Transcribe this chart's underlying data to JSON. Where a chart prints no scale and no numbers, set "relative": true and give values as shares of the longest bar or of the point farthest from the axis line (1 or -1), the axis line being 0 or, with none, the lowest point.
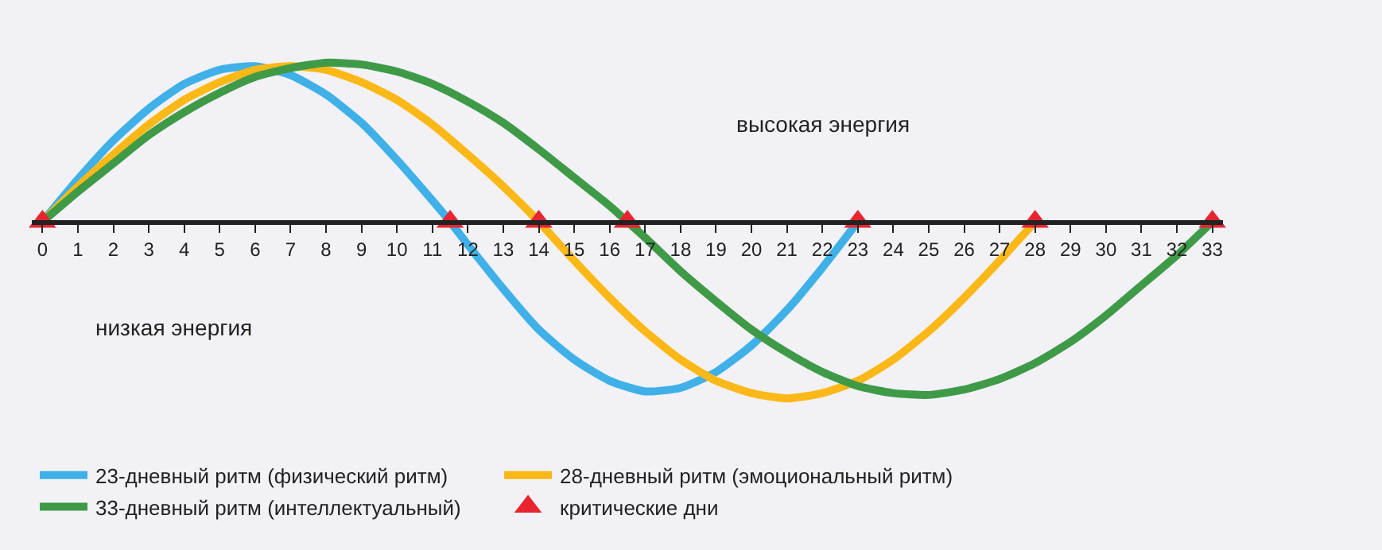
{
  "chart_data": {
    "type": "line",
    "relative": true,
    "grid": false,
    "legend": "bottom",
    "marker": "none",
    "line_style": "solid",
    "xlim": [
      -0.3,
      33.3
    ],
    "xticks": [
      0,
      1,
      2,
      3,
      4,
      5,
      6,
      7,
      8,
      9,
      10,
      11,
      12,
      13,
      14,
      15,
      16,
      17,
      18,
      19,
      20,
      21,
      22,
      23,
      24,
      25,
      26,
      27,
      28,
      29,
      30,
      31,
      32,
      33
    ],
    "annotations": [
      "высокая энергия",
      "низкая энергия"
    ],
    "series": [
      {
        "name": "23-дневный ритм (физический ритм)",
        "color": "#3fb0e8",
        "x": [
          0,
          1,
          2,
          3,
          4,
          5,
          6,
          7,
          8,
          9,
          10,
          11,
          11.5,
          12,
          13,
          14,
          15,
          16,
          17,
          18,
          19,
          20,
          21,
          22,
          23
        ],
        "values": [
          0,
          0.24,
          0.46,
          0.64,
          0.78,
          0.86,
          0.88,
          0.83,
          0.72,
          0.56,
          0.35,
          0.12,
          0,
          -0.13,
          -0.38,
          -0.61,
          -0.78,
          -0.9,
          -0.96,
          -0.94,
          -0.85,
          -0.7,
          -0.5,
          -0.26,
          0
        ]
      },
      {
        "name": "28-дневный ритм (эмоциональный ритм)",
        "color": "#fbb817",
        "x": [
          0,
          1,
          2,
          3,
          4,
          5,
          6,
          7,
          8,
          9,
          10,
          11,
          12,
          13,
          14,
          15,
          16,
          17,
          18,
          19,
          20,
          21,
          22,
          23,
          24,
          25,
          26,
          27,
          28
        ],
        "values": [
          0,
          0.2,
          0.38,
          0.55,
          0.69,
          0.79,
          0.86,
          0.88,
          0.86,
          0.79,
          0.69,
          0.55,
          0.38,
          0.2,
          0,
          -0.22,
          -0.43,
          -0.62,
          -0.78,
          -0.9,
          -0.97,
          -1,
          -0.97,
          -0.9,
          -0.78,
          -0.62,
          -0.43,
          -0.22,
          0
        ]
      },
      {
        "name": "33-дневный ритм (интеллектуальный)",
        "color": "#3f9a48",
        "x": [
          0,
          1,
          2,
          3,
          4,
          5,
          6,
          7,
          8,
          9,
          10,
          11,
          12,
          13,
          14,
          15,
          16,
          16.5,
          17,
          18,
          19,
          20,
          21,
          22,
          23,
          24,
          25,
          26,
          27,
          28,
          29,
          30,
          31,
          32,
          33
        ],
        "values": [
          0,
          0.17,
          0.33,
          0.49,
          0.62,
          0.73,
          0.82,
          0.87,
          0.9,
          0.89,
          0.85,
          0.78,
          0.68,
          0.56,
          0.41,
          0.25,
          0.09,
          0,
          -0.09,
          -0.28,
          -0.45,
          -0.61,
          -0.74,
          -0.85,
          -0.93,
          -0.97,
          -0.98,
          -0.95,
          -0.89,
          -0.8,
          -0.68,
          -0.53,
          -0.36,
          -0.19,
          0
        ]
      },
      {
        "name": "критические дни",
        "color": "#e8252f",
        "type": "scatter",
        "marker": "triangle",
        "x": [
          0,
          11.5,
          14,
          16.5,
          23,
          28,
          33
        ],
        "values": [
          0,
          0,
          0,
          0,
          0,
          0,
          0
        ]
      }
    ]
  }
}
